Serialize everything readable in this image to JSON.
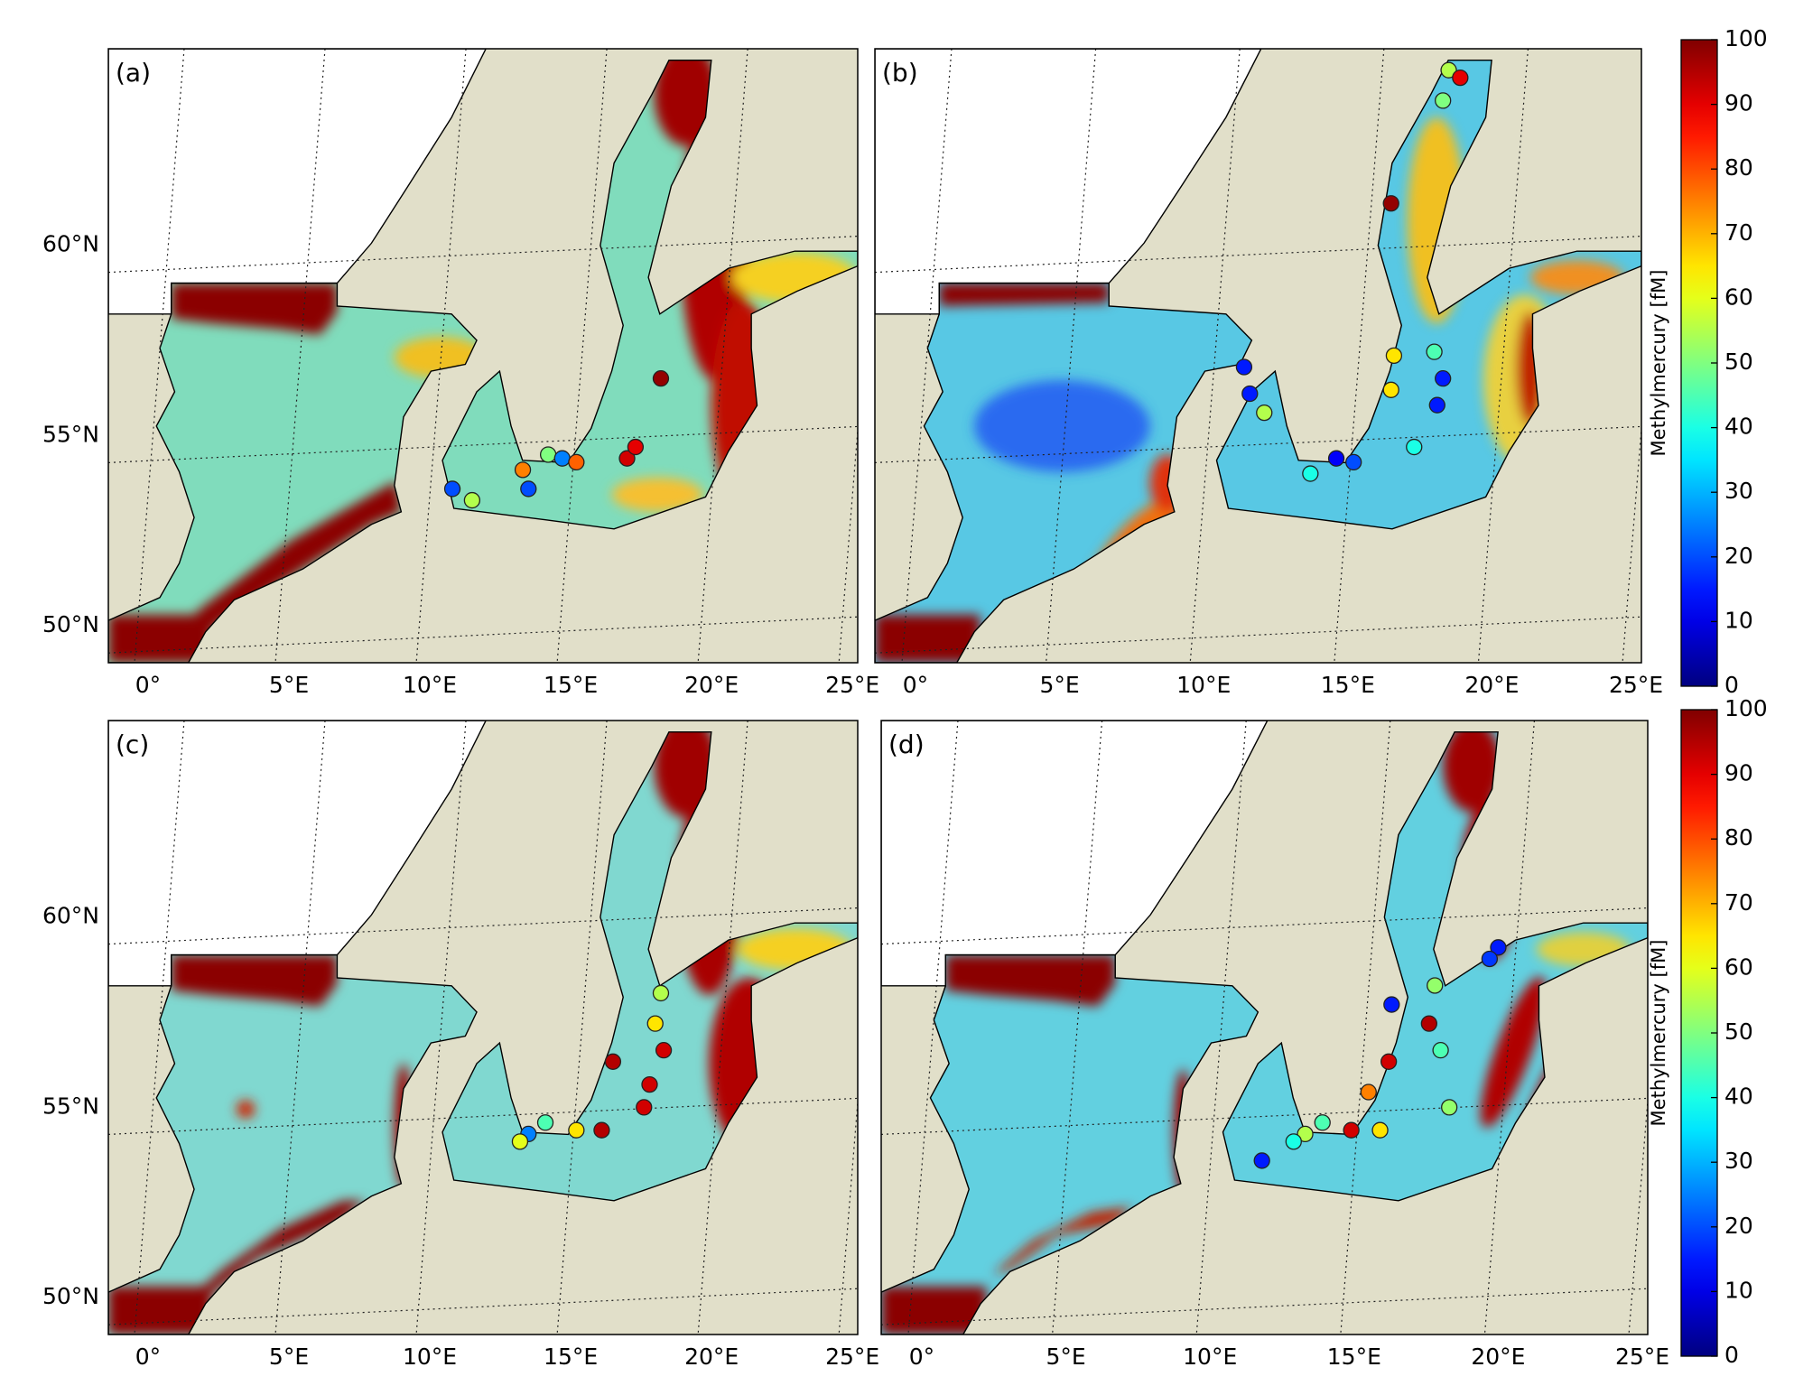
{
  "panels": [
    {
      "label": "(a)",
      "stations": {
        "lon": [
          10.8,
          11.5,
          13.3,
          13.5,
          14.2,
          14.7,
          15.2,
          17.0,
          17.3,
          18.2
        ],
        "lat": [
          53.6,
          53.3,
          54.1,
          53.6,
          54.5,
          54.4,
          54.3,
          54.4,
          54.7,
          56.5
        ],
        "value": [
          20,
          55,
          75,
          20,
          50,
          25,
          78,
          92,
          90,
          98
        ]
      }
    },
    {
      "label": "(b)",
      "stations": {
        "lon": [
          18.5,
          18.9,
          18.3,
          16.5,
          11.4,
          11.6,
          12.1,
          16.6,
          18.0,
          16.5,
          18.3,
          18.1,
          17.3,
          14.6,
          15.2,
          13.7
        ],
        "lat": [
          64.6,
          64.4,
          63.8,
          61.1,
          56.8,
          56.1,
          55.6,
          57.1,
          57.2,
          56.2,
          56.5,
          55.8,
          54.7,
          54.4,
          54.3,
          54.0
        ],
        "value": [
          55,
          90,
          50,
          98,
          15,
          15,
          55,
          65,
          45,
          65,
          15,
          15,
          40,
          12,
          20,
          40
        ]
      }
    },
    {
      "label": "(c)",
      "stations": {
        "lon": [
          18.2,
          18.0,
          18.3,
          16.5,
          17.8,
          17.6,
          16.1,
          15.2,
          14.1,
          13.5,
          13.2
        ],
        "lat": [
          58.0,
          57.2,
          56.5,
          56.2,
          55.6,
          55.0,
          54.4,
          54.4,
          54.6,
          54.3,
          54.1
        ],
        "value": [
          55,
          65,
          92,
          95,
          92,
          92,
          95,
          65,
          45,
          25,
          60
        ]
      }
    },
    {
      "label": "(d)",
      "stations": {
        "lon": [
          20.0,
          19.7,
          17.8,
          16.3,
          17.6,
          16.2,
          18.0,
          18.3,
          15.5,
          14.9,
          15.9,
          13.9,
          13.3,
          12.9,
          11.8
        ],
        "lat": [
          59.2,
          58.9,
          58.2,
          57.7,
          57.2,
          56.2,
          56.5,
          55.0,
          55.4,
          54.4,
          54.4,
          54.6,
          54.3,
          54.1,
          53.6
        ],
        "value": [
          15,
          18,
          52,
          15,
          95,
          92,
          45,
          52,
          75,
          92,
          65,
          45,
          55,
          40,
          15
        ]
      }
    }
  ],
  "lon_ticks": [
    {
      "value": 0,
      "label": "0°"
    },
    {
      "value": 5,
      "label": "5°E"
    },
    {
      "value": 10,
      "label": "10°E"
    },
    {
      "value": 15,
      "label": "15°E"
    },
    {
      "value": 20,
      "label": "20°E"
    },
    {
      "value": 25,
      "label": "25°E"
    }
  ],
  "lat_ticks": [
    {
      "value": 50,
      "label": "50°N"
    },
    {
      "value": 55,
      "label": "55°N"
    },
    {
      "value": 60,
      "label": "60°N"
    }
  ],
  "colorbar": {
    "label": "Methylmercury [fM]",
    "lim": [
      0,
      100
    ],
    "ticks": [
      0,
      10,
      20,
      30,
      40,
      50,
      60,
      70,
      80,
      90,
      100
    ]
  }
}
